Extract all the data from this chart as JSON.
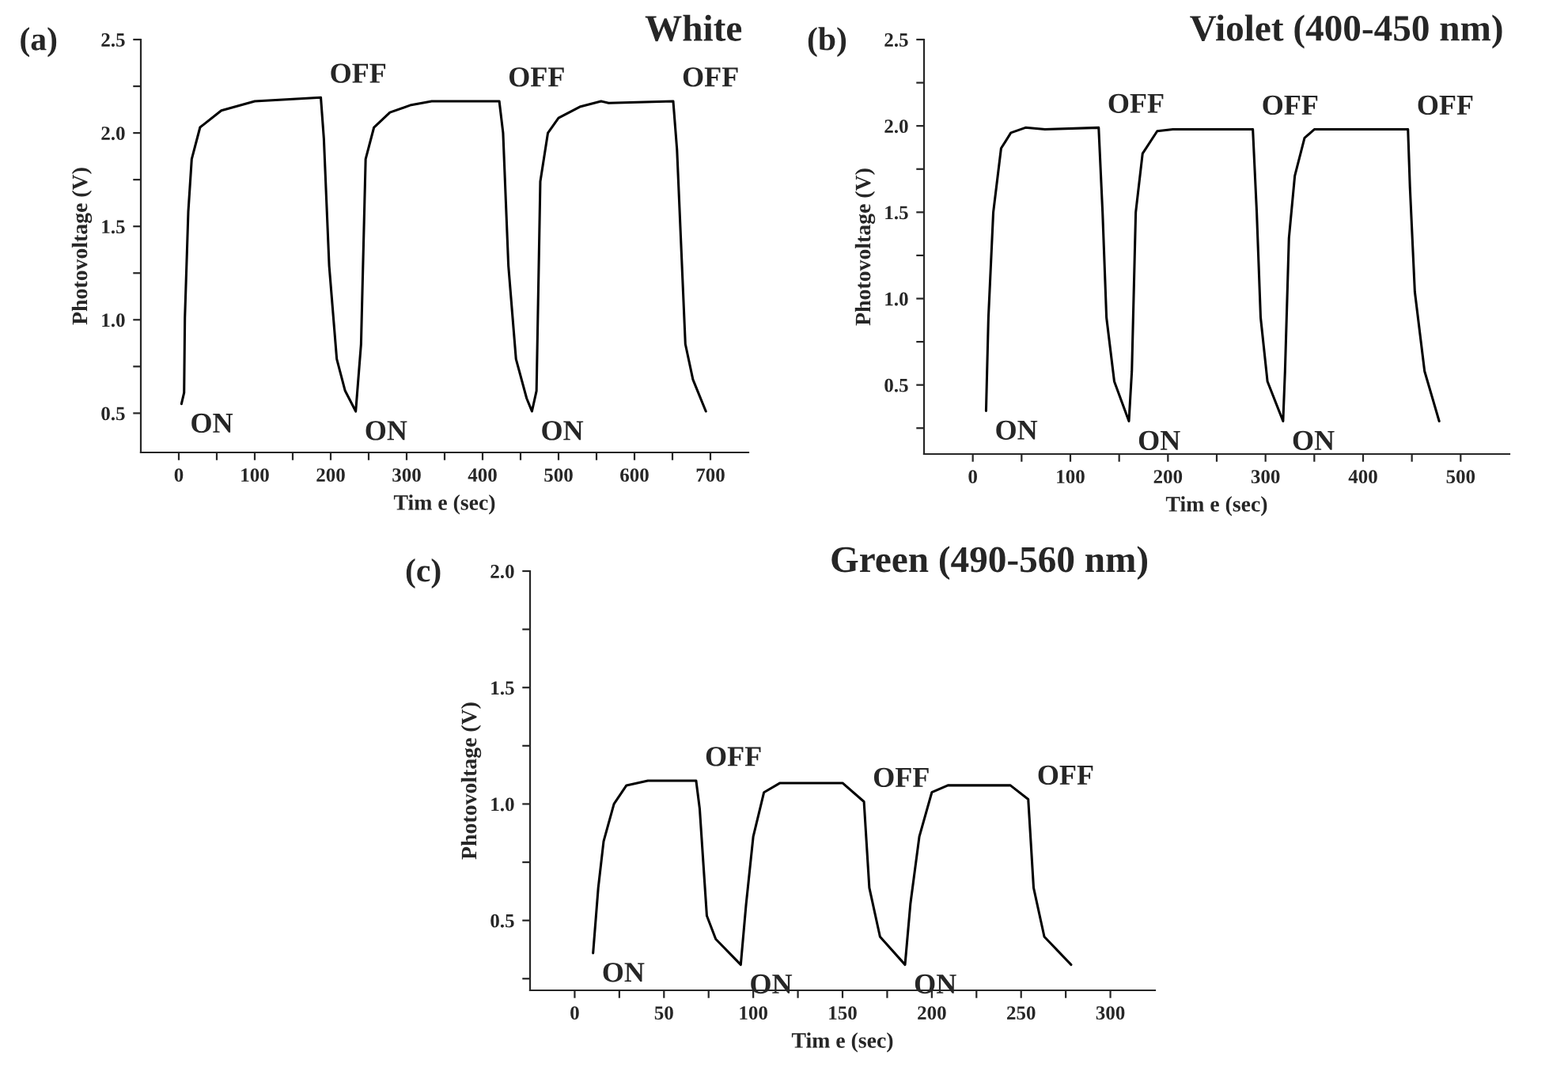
{
  "chart_data": [
    {
      "type": "line",
      "title": "White",
      "xlabel": "Tim e (sec)",
      "ylabel": "Photovoltage (V)",
      "annotations": [
        "(a)",
        {
          "text": "ON",
          "x": 3.5,
          "y": 0.55
        },
        {
          "text": "OFF",
          "x": 187,
          "y": 2.19
        },
        {
          "text": "ON",
          "x": 233,
          "y": 0.51
        },
        {
          "text": "OFF",
          "x": 422,
          "y": 2.17
        },
        {
          "text": "ON",
          "x": 465,
          "y": 0.51
        },
        {
          "text": "OFF",
          "x": 651,
          "y": 2.17
        }
      ],
      "series": [
        {
          "color": "#000000",
          "x": [
            3.5,
            7,
            8,
            12.5,
            17,
            28,
            56,
            100,
            187,
            191,
            198,
            208,
            219,
            233,
            240,
            246,
            257,
            278,
            306,
            333,
            422,
            427,
            434,
            444,
            458,
            465,
            471,
            476,
            486,
            500,
            528,
            556,
            566,
            651,
            656,
            667,
            677,
            694
          ],
          "values": [
            0.55,
            0.61,
            1.01,
            1.58,
            1.86,
            2.03,
            2.12,
            2.17,
            2.19,
            1.97,
            1.29,
            0.79,
            0.62,
            0.51,
            0.87,
            1.86,
            2.03,
            2.11,
            2.15,
            2.17,
            2.17,
            2.0,
            1.29,
            0.79,
            0.58,
            0.51,
            0.62,
            1.74,
            2.0,
            2.08,
            2.14,
            2.17,
            2.16,
            2.17,
            1.91,
            0.87,
            0.68,
            0.51
          ]
        }
      ],
      "xlim": [
        -50,
        750
      ],
      "ylim": [
        0.29,
        2.5
      ],
      "xticks": [
        0,
        {
          "value": 50,
          "label": null
        },
        100,
        {
          "value": 150,
          "label": null
        },
        200,
        {
          "value": 250,
          "label": null
        },
        300,
        {
          "value": 350,
          "label": null
        },
        400,
        {
          "value": 450,
          "label": null
        },
        500,
        {
          "value": 550,
          "label": null
        },
        600,
        {
          "value": 650,
          "label": null
        },
        700
      ],
      "yticks": [
        0.5,
        {
          "value": 0.75,
          "label": null
        },
        {
          "value": 1,
          "label": "1.0"
        },
        {
          "value": 1.25,
          "label": null
        },
        1.5,
        {
          "value": 1.75,
          "label": null
        },
        {
          "value": 2,
          "label": "2.0"
        },
        {
          "value": 2.25,
          "label": null
        },
        2.5
      ],
      "grid": false,
      "legend": false,
      "line_style": "solid",
      "marker": "none"
    },
    {
      "type": "line",
      "title": "Violet (400-450 nm)",
      "xlabel": "Tim e (sec)",
      "ylabel": "Photovoltage (V)",
      "annotations": [
        "(b)",
        {
          "text": "ON",
          "x": 13.6,
          "y": 0.35
        },
        {
          "text": "OFF",
          "x": 129,
          "y": 1.99
        },
        {
          "text": "ON",
          "x": 160,
          "y": 0.29
        },
        {
          "text": "OFF",
          "x": 287,
          "y": 1.98
        },
        {
          "text": "ON",
          "x": 318,
          "y": 0.29
        },
        {
          "text": "OFF",
          "x": 446,
          "y": 1.98
        }
      ],
      "series": [
        {
          "color": "#000000",
          "x": [
            13.6,
            16,
            21,
            29,
            39,
            54,
            74,
            129,
            133,
            137,
            145,
            160,
            163,
            167,
            174,
            189,
            205,
            287,
            291,
            295,
            302,
            318,
            320,
            324,
            330,
            340,
            350,
            446,
            448,
            453,
            463,
            478
          ],
          "values": [
            0.35,
            0.89,
            1.5,
            1.87,
            1.96,
            1.99,
            1.98,
            1.99,
            1.5,
            0.89,
            0.52,
            0.29,
            0.58,
            1.5,
            1.84,
            1.97,
            1.98,
            1.98,
            1.5,
            0.89,
            0.52,
            0.29,
            0.58,
            1.35,
            1.71,
            1.93,
            1.98,
            1.98,
            1.65,
            1.04,
            0.58,
            0.29
          ]
        }
      ],
      "xlim": [
        -50,
        550
      ],
      "ylim": [
        0.1,
        2.5
      ],
      "xticks": [
        0,
        {
          "value": 50,
          "label": null
        },
        100,
        {
          "value": 150,
          "label": null
        },
        200,
        {
          "value": 250,
          "label": null
        },
        300,
        {
          "value": 350,
          "label": null
        },
        400,
        {
          "value": 450,
          "label": null
        },
        500
      ],
      "yticks": [
        {
          "value": 0.25,
          "label": null
        },
        0.5,
        {
          "value": 0.75,
          "label": null
        },
        {
          "value": 1,
          "label": "1.0"
        },
        {
          "value": 1.25,
          "label": null
        },
        1.5,
        {
          "value": 1.75,
          "label": null
        },
        {
          "value": 2,
          "label": "2.0"
        },
        {
          "value": 2.25,
          "label": null
        },
        2.5
      ],
      "grid": false,
      "legend": false,
      "line_style": "solid",
      "marker": "none"
    },
    {
      "type": "line",
      "title": "Green (490-560 nm)",
      "xlabel": "Tim e (sec)",
      "ylabel": "Photovoltage (V)",
      "annotations": [
        "(c)",
        {
          "text": "ON",
          "x": 10.3,
          "y": 0.36
        },
        {
          "text": "OFF",
          "x": 68,
          "y": 1.1
        },
        {
          "text": "ON",
          "x": 93,
          "y": 0.31
        },
        {
          "text": "OFF",
          "x": 162,
          "y": 1.01
        },
        {
          "text": "ON",
          "x": 185,
          "y": 0.31
        },
        {
          "text": "OFF",
          "x": 254,
          "y": 1.02
        }
      ],
      "series": [
        {
          "color": "#000000",
          "x": [
            10.3,
            13.2,
            16.2,
            22,
            29,
            41,
            68,
            70,
            74,
            79,
            93,
            96,
            100,
            106,
            115,
            150,
            162,
            165,
            171,
            185,
            188,
            193,
            200,
            209,
            244,
            254,
            257,
            263,
            278
          ],
          "values": [
            0.36,
            0.64,
            0.84,
            1.0,
            1.08,
            1.1,
            1.1,
            0.98,
            0.52,
            0.42,
            0.31,
            0.57,
            0.86,
            1.05,
            1.09,
            1.09,
            1.01,
            0.64,
            0.43,
            0.31,
            0.57,
            0.86,
            1.05,
            1.08,
            1.08,
            1.02,
            0.64,
            0.43,
            0.31
          ]
        }
      ],
      "xlim": [
        -25,
        325
      ],
      "ylim": [
        0.2,
        2.0
      ],
      "xticks": [
        0,
        {
          "value": 25,
          "label": null
        },
        50,
        {
          "value": 75,
          "label": null
        },
        100,
        {
          "value": 125,
          "label": null
        },
        150,
        {
          "value": 175,
          "label": null
        },
        200,
        {
          "value": 225,
          "label": null
        },
        250,
        {
          "value": 275,
          "label": null
        },
        300
      ],
      "yticks": [
        {
          "value": 0.25,
          "label": null
        },
        0.5,
        {
          "value": 0.75,
          "label": null
        },
        {
          "value": 1,
          "label": "1.0"
        },
        {
          "value": 1.25,
          "label": null
        },
        1.5,
        {
          "value": 1.75,
          "label": null
        },
        {
          "value": 2,
          "label": "2.0"
        }
      ],
      "grid": false,
      "legend": false,
      "line_style": "solid",
      "marker": "none"
    }
  ]
}
